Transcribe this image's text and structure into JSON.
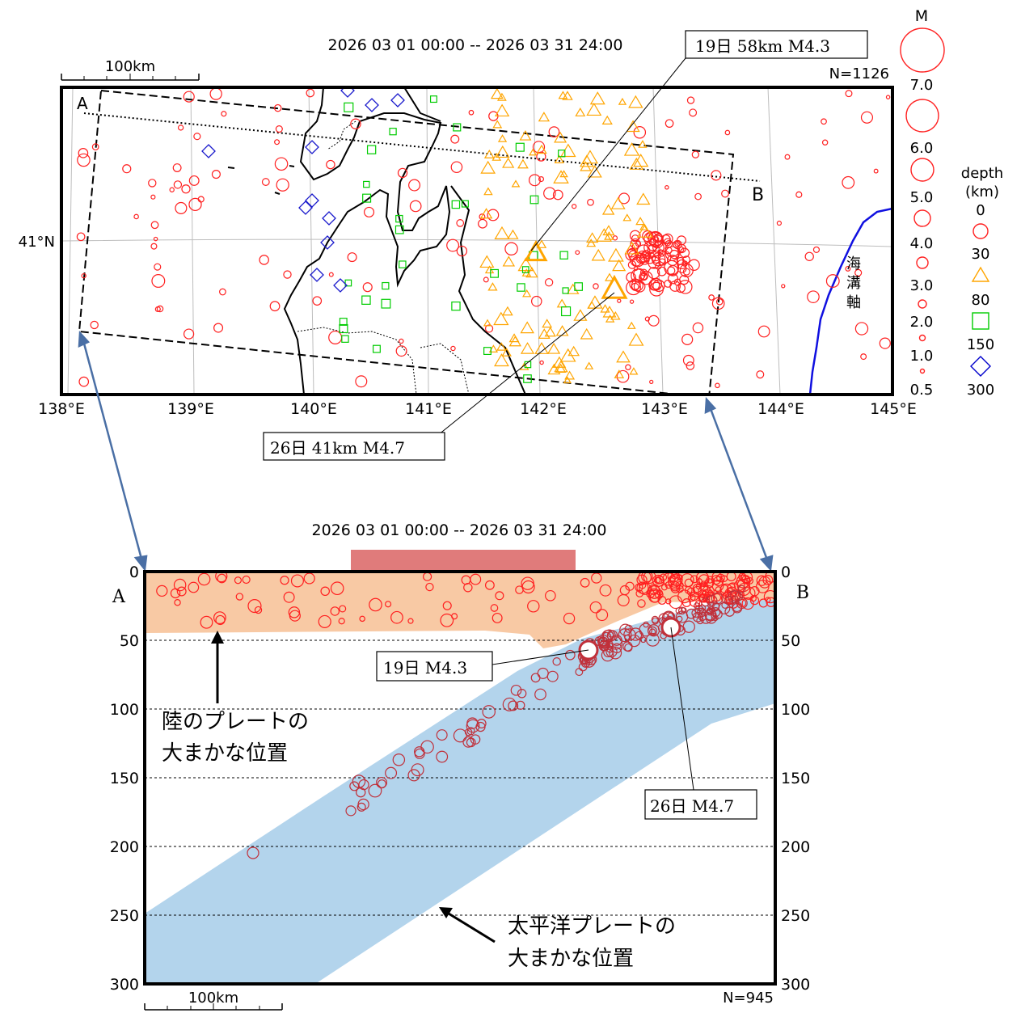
{
  "map": {
    "period": "2026 03 01 00:00 -- 2026 03 31 24:00",
    "count": "N=1126",
    "scale_label": "100km",
    "section_start": "A",
    "section_end": "B",
    "lat_label": "41°N",
    "lon_labels": [
      "138°E",
      "139°E",
      "140°E",
      "141°E",
      "142°E",
      "143°E",
      "144°E",
      "145°E"
    ],
    "trench_label": [
      "海",
      "溝",
      "軸"
    ],
    "callout_19": "19日 58km  M4.3",
    "callout_26": "26日 41km  M4.7"
  },
  "legend": {
    "magnitude_title": "M",
    "magnitudes": [
      "7.0",
      "6.0",
      "5.0",
      "4.0",
      "3.0",
      "2.0",
      "1.0",
      "0.5"
    ],
    "depth_title": [
      "depth",
      "(km)"
    ],
    "depths": [
      "0",
      "30",
      "80",
      "150",
      "300"
    ],
    "depth_colors": {
      "0-30": "#ff0000",
      "30-80": "#ffa500",
      "80-150": "#00cc00",
      "150-300": "#0000cc"
    }
  },
  "section": {
    "period": "2026 03 01 00:00 -- 2026 03 31 24:00",
    "count": "N=945",
    "scale_label": "100km",
    "label_a": "A",
    "label_b": "B",
    "depth_ticks": [
      "0",
      "50",
      "100",
      "150",
      "200",
      "250",
      "300"
    ],
    "callout_19": "19日 M4.3",
    "callout_26": "26日 M4.7",
    "land_plate_label": [
      "陸のプレートの",
      "大まかな位置"
    ],
    "pacific_plate_label": [
      "太平洋プレートの",
      "大まかな位置"
    ],
    "colors": {
      "land_plate": "#f8c9a4",
      "pacific_plate": "#b3d4ec",
      "event": "#ff2020",
      "deep_event": "#c0303a",
      "highlight_bar": "#e07b7b"
    }
  }
}
